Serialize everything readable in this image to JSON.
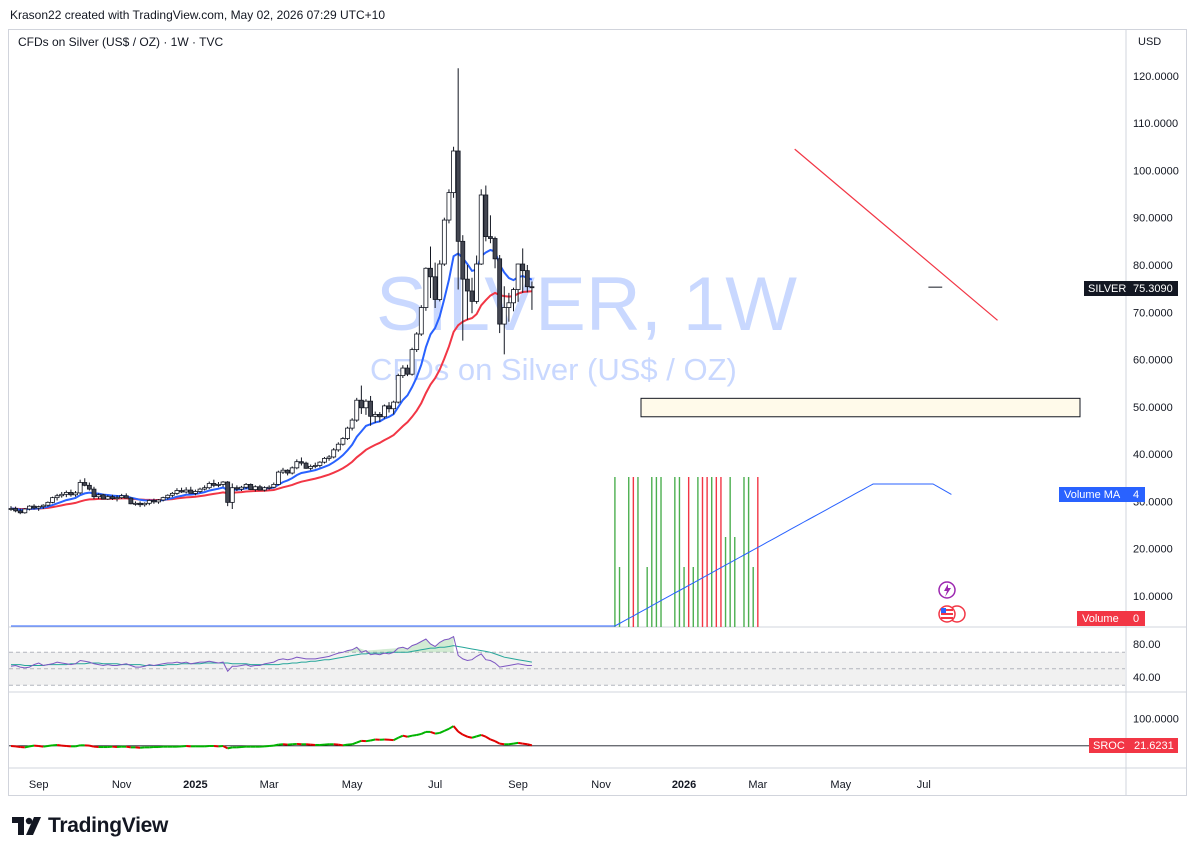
{
  "header": {
    "credit": "Krason22 created with TradingView.com, May 02, 2026 07:29 UTC+10",
    "symbol_title": "CFDs on Silver (US$ / OZ) · 1W · TVC",
    "currency": "USD"
  },
  "watermark": {
    "big": "SILVER, 1W",
    "small": "CFDs on Silver (US$ / OZ)"
  },
  "price_tag": {
    "label": "SILVER",
    "value": "75.3090"
  },
  "volume_ma_tag": {
    "label": "Volume MA",
    "value": "4"
  },
  "volume_tag": {
    "label": "Volume",
    "value": "0"
  },
  "sroc_tag": {
    "label": "SROC",
    "value": "21.6231"
  },
  "logo_text": "TradingView",
  "colors": {
    "up": "#ffffff",
    "down": "#434651",
    "candle_border": "#131722",
    "ma_fast": "#2962ff",
    "ma_slow": "#f23645",
    "vol_up": "#4caf50",
    "vol_down": "#f23645",
    "rsi": "#7e57c2",
    "rsi_ma": "#26a69a",
    "sroc_up": "#00b300",
    "sroc_down": "#e00000",
    "trendline": "#f23645"
  },
  "chart_data": [
    {
      "type": "candlestick",
      "title": "CFDs on Silver (US$ / OZ) · 1W · TVC",
      "ylabel": "USD",
      "ylim": [
        0,
        125
      ],
      "y_ticks": [
        10,
        20,
        30,
        40,
        50,
        60,
        70,
        80,
        90,
        100,
        110,
        120
      ],
      "y_tick_labels": [
        "10.0000",
        "20.0000",
        "30.0000",
        "40.0000",
        "50.0000",
        "60.0000",
        "70.0000",
        "80.0000",
        "90.0000",
        "100.0000",
        "110.0000",
        "120.0000"
      ],
      "x_tick_labels": [
        "Sep",
        "Nov",
        "2025",
        "Mar",
        "May",
        "Jul",
        "Sep",
        "Nov",
        "2026",
        "Mar",
        "May",
        "Jul"
      ],
      "x_tick_weeks": [
        6,
        24,
        40,
        56,
        74,
        92,
        110,
        128,
        146,
        162,
        180,
        198
      ],
      "last_price": 75.309,
      "candles": [
        [
          28.4,
          29.0,
          28.0,
          28.5
        ],
        [
          28.5,
          28.9,
          27.7,
          28.0
        ],
        [
          28.0,
          28.5,
          27.3,
          27.6
        ],
        [
          27.6,
          28.6,
          27.4,
          28.4
        ],
        [
          28.4,
          29.2,
          28.1,
          29.0
        ],
        [
          29.0,
          29.4,
          28.3,
          28.6
        ],
        [
          28.6,
          29.1,
          28.0,
          28.9
        ],
        [
          28.9,
          29.4,
          28.4,
          29.2
        ],
        [
          29.2,
          30.0,
          28.9,
          29.8
        ],
        [
          29.8,
          31.0,
          29.6,
          30.8
        ],
        [
          30.8,
          31.6,
          30.2,
          31.2
        ],
        [
          31.2,
          32.0,
          30.8,
          31.5
        ],
        [
          31.5,
          32.3,
          30.9,
          31.9
        ],
        [
          31.9,
          32.5,
          31.0,
          31.4
        ],
        [
          31.4,
          32.2,
          31.0,
          31.8
        ],
        [
          31.8,
          34.6,
          31.5,
          34.0
        ],
        [
          34.0,
          34.9,
          33.2,
          33.4
        ],
        [
          33.4,
          34.0,
          32.3,
          32.6
        ],
        [
          32.6,
          33.1,
          30.5,
          31.0
        ],
        [
          31.0,
          31.7,
          30.5,
          31.4
        ],
        [
          31.4,
          31.6,
          30.4,
          30.5
        ],
        [
          30.5,
          31.3,
          30.3,
          31.0
        ],
        [
          31.0,
          31.4,
          30.3,
          30.6
        ],
        [
          30.6,
          31.3,
          30.0,
          30.8
        ],
        [
          30.8,
          31.6,
          30.5,
          31.2
        ],
        [
          31.2,
          31.7,
          30.6,
          30.7
        ],
        [
          30.7,
          30.9,
          29.4,
          29.5
        ],
        [
          29.5,
          30.0,
          29.1,
          29.6
        ],
        [
          29.6,
          30.0,
          28.8,
          29.3
        ],
        [
          29.3,
          29.8,
          28.9,
          29.6
        ],
        [
          29.6,
          30.4,
          29.2,
          30.2
        ],
        [
          30.2,
          30.6,
          29.5,
          29.9
        ],
        [
          29.9,
          30.5,
          29.5,
          30.3
        ],
        [
          30.3,
          31.0,
          30.0,
          30.8
        ],
        [
          30.8,
          31.5,
          30.4,
          31.3
        ],
        [
          31.3,
          32.0,
          30.9,
          31.7
        ],
        [
          31.7,
          32.8,
          31.4,
          32.3
        ],
        [
          32.3,
          32.9,
          31.8,
          32.0
        ],
        [
          32.0,
          33.0,
          31.7,
          32.4
        ],
        [
          32.4,
          33.1,
          31.8,
          31.7
        ],
        [
          31.7,
          32.5,
          31.3,
          32.1
        ],
        [
          32.1,
          32.9,
          31.8,
          32.6
        ],
        [
          32.6,
          33.4,
          32.3,
          32.9
        ],
        [
          32.9,
          34.2,
          32.6,
          33.8
        ],
        [
          33.8,
          34.6,
          33.0,
          33.4
        ],
        [
          33.4,
          34.1,
          33.0,
          33.6
        ],
        [
          33.6,
          34.3,
          33.1,
          34.1
        ],
        [
          34.1,
          34.3,
          29.0,
          29.8
        ],
        [
          29.8,
          33.8,
          28.4,
          32.9
        ],
        [
          32.9,
          33.4,
          32.2,
          32.6
        ],
        [
          32.6,
          33.3,
          32.2,
          33.0
        ],
        [
          33.0,
          33.9,
          32.6,
          33.6
        ],
        [
          33.6,
          33.8,
          32.4,
          32.5
        ],
        [
          32.5,
          33.4,
          32.1,
          33.1
        ],
        [
          33.1,
          33.5,
          32.3,
          32.4
        ],
        [
          32.4,
          33.2,
          32.1,
          32.9
        ],
        [
          32.9,
          33.4,
          32.5,
          33.0
        ],
        [
          33.0,
          34.0,
          32.8,
          33.6
        ],
        [
          33.6,
          36.5,
          33.4,
          36.2
        ],
        [
          36.2,
          37.1,
          35.8,
          36.6
        ],
        [
          36.6,
          36.8,
          35.5,
          36.0
        ],
        [
          36.0,
          37.4,
          35.7,
          37.1
        ],
        [
          37.1,
          38.9,
          36.8,
          38.4
        ],
        [
          38.4,
          39.3,
          37.6,
          38.1
        ],
        [
          38.1,
          38.4,
          36.9,
          37.0
        ],
        [
          37.0,
          37.8,
          36.6,
          37.4
        ],
        [
          37.4,
          38.2,
          37.0,
          37.6
        ],
        [
          37.6,
          38.5,
          37.2,
          38.3
        ],
        [
          38.3,
          39.4,
          38.0,
          39.1
        ],
        [
          39.1,
          39.8,
          38.6,
          39.4
        ],
        [
          39.4,
          41.3,
          39.1,
          40.9
        ],
        [
          40.9,
          42.5,
          40.5,
          42.1
        ],
        [
          42.1,
          43.6,
          41.8,
          43.3
        ],
        [
          43.3,
          45.8,
          43.0,
          45.5
        ],
        [
          45.5,
          47.6,
          45.0,
          47.2
        ],
        [
          47.2,
          51.9,
          46.8,
          51.4
        ],
        [
          51.4,
          54.5,
          48.5,
          49.8
        ],
        [
          49.8,
          51.6,
          48.3,
          51.2
        ],
        [
          51.2,
          52.3,
          46.0,
          48.0
        ],
        [
          48.0,
          49.0,
          46.6,
          48.4
        ],
        [
          48.4,
          48.9,
          46.8,
          47.9
        ],
        [
          47.9,
          50.5,
          47.5,
          50.2
        ],
        [
          50.2,
          51.0,
          48.8,
          49.6
        ],
        [
          49.6,
          51.3,
          48.4,
          51.0
        ],
        [
          51.0,
          57.0,
          50.7,
          56.6
        ],
        [
          56.6,
          58.8,
          56.1,
          58.2
        ],
        [
          58.2,
          58.9,
          56.5,
          56.9
        ],
        [
          56.9,
          62.5,
          56.6,
          62.1
        ],
        [
          62.1,
          65.8,
          61.6,
          65.4
        ],
        [
          65.4,
          71.5,
          65.0,
          71.0
        ],
        [
          71.0,
          79.5,
          70.3,
          79.3
        ],
        [
          79.3,
          83.9,
          73.0,
          77.5
        ],
        [
          77.5,
          80.5,
          70.9,
          72.7
        ],
        [
          72.7,
          81.0,
          72.3,
          80.2
        ],
        [
          80.2,
          90.0,
          79.8,
          89.5
        ],
        [
          89.5,
          96.0,
          88.8,
          95.3
        ],
        [
          95.3,
          105.0,
          94.2,
          104.1
        ],
        [
          104.1,
          121.6,
          74.8,
          85.0
        ],
        [
          85.0,
          86.3,
          64.0,
          77.0
        ],
        [
          77.0,
          80.0,
          68.4,
          74.5
        ],
        [
          74.5,
          77.3,
          69.8,
          72.3
        ],
        [
          72.3,
          82.0,
          71.8,
          80.2
        ],
        [
          80.2,
          96.0,
          80.0,
          94.8
        ],
        [
          94.8,
          96.8,
          85.0,
          86.0
        ],
        [
          86.0,
          90.5,
          84.6,
          85.6
        ],
        [
          85.6,
          86.0,
          79.3,
          81.3
        ],
        [
          81.3,
          82.1,
          65.6,
          67.5
        ],
        [
          67.5,
          75.5,
          61.1,
          71.0
        ],
        [
          71.0,
          74.1,
          68.0,
          72.0
        ],
        [
          72.0,
          75.2,
          70.2,
          74.8
        ],
        [
          74.8,
          80.3,
          72.2,
          80.2
        ],
        [
          80.2,
          83.5,
          74.1,
          78.8
        ],
        [
          78.8,
          80.0,
          74.2,
          75.4
        ],
        [
          75.4,
          76.5,
          70.5,
          75.3
        ]
      ]
    },
    {
      "type": "histogram",
      "title": "Volume",
      "value_label": "0",
      "ma_label": "Volume MA",
      "ma_value_label": "4",
      "note": "Volume bars appear only from Oct 2025 onward; green = up week, red = down week",
      "bars_start_week": 131,
      "bar_heights": [
        1.0,
        0.4,
        0.0,
        1.0,
        1.0,
        1.0,
        0.0,
        0.4,
        1.0,
        1.0,
        1.0,
        0.0,
        0.0,
        1.0,
        1.0,
        0.4,
        1.0,
        0.4,
        1.0,
        1.0,
        1.0,
        1.0,
        1.0,
        1.0,
        0.6,
        1.0,
        0.6,
        0.0,
        1.0,
        1.0,
        0.4,
        1.0
      ],
      "bar_up": [
        true,
        true,
        false,
        true,
        false,
        true,
        false,
        true,
        true,
        true,
        true,
        false,
        false,
        true,
        true,
        true,
        false,
        true,
        true,
        false,
        false,
        true,
        false,
        false,
        true,
        true,
        true,
        false,
        true,
        true,
        true,
        false
      ],
      "ma_description": "flat near zero until Oct 2025, then rising steadily to a plateau from Feb 2026 and edging lower at the end"
    },
    {
      "type": "line",
      "title": "RSI",
      "y_ticks": [
        40,
        80
      ],
      "y_tick_labels": [
        "40.00",
        "80.00"
      ],
      "band": [
        30,
        70
      ],
      "series": [
        {
          "role": "rsi",
          "color": "#7e57c2",
          "values": [
            53,
            54,
            52,
            51,
            52,
            55,
            57,
            54,
            55,
            56,
            58,
            57,
            56,
            55,
            56,
            60,
            59,
            58,
            56,
            55,
            54,
            55,
            54,
            54,
            55,
            56,
            54,
            52,
            52,
            53,
            55,
            54,
            55,
            56,
            57,
            57,
            58,
            57,
            58,
            56,
            57,
            58,
            58,
            59,
            58,
            57,
            58,
            47,
            53,
            53,
            54,
            55,
            53,
            54,
            54,
            56,
            57,
            58,
            61,
            62,
            61,
            62,
            64,
            63,
            62,
            62,
            62,
            63,
            64,
            65,
            67,
            69,
            70,
            72,
            73,
            76,
            70,
            72,
            67,
            68,
            67,
            69,
            68,
            70,
            75,
            76,
            74,
            78,
            80,
            83,
            86,
            80,
            77,
            82,
            85,
            86,
            89,
            66,
            62,
            60,
            61,
            65,
            68,
            61,
            60,
            57,
            52,
            53,
            54,
            55,
            56,
            55,
            54,
            54
          ]
        },
        {
          "role": "rsi-ma",
          "color": "#26a69a",
          "values": [
            55,
            55,
            55,
            54,
            54,
            54,
            54,
            54,
            55,
            55,
            55,
            55,
            55,
            56,
            56,
            56,
            56,
            57,
            57,
            57,
            56,
            56,
            56,
            56,
            55,
            55,
            55,
            55,
            55,
            54,
            54,
            54,
            54,
            54,
            55,
            55,
            55,
            56,
            56,
            56,
            56,
            56,
            57,
            57,
            57,
            57,
            57,
            57,
            56,
            56,
            56,
            56,
            55,
            55,
            55,
            55,
            55,
            55,
            55,
            56,
            56,
            57,
            57,
            58,
            58,
            59,
            59,
            60,
            61,
            61,
            62,
            63,
            64,
            65,
            66,
            67,
            68,
            68,
            69,
            69,
            69,
            69,
            70,
            70,
            70,
            70,
            70,
            71,
            72,
            73,
            74,
            75,
            75,
            76,
            76,
            77,
            78,
            77,
            76,
            75,
            74,
            73,
            72,
            71,
            70,
            68,
            66,
            64,
            63,
            62,
            61,
            60,
            59,
            58
          ]
        }
      ]
    },
    {
      "type": "line",
      "title": "SROC",
      "value_label": "21.6231",
      "y_ticks": [
        100
      ],
      "y_tick_labels": [
        "100.0000"
      ],
      "series": [
        {
          "role": "sroc",
          "values": [
            20,
            19,
            17,
            16,
            19,
            21,
            20,
            18,
            20,
            22,
            23,
            21,
            20,
            19,
            19,
            22,
            22,
            21,
            18,
            17,
            17,
            17,
            18,
            17,
            18,
            18,
            16,
            16,
            15,
            16,
            16,
            17,
            17,
            18,
            18,
            18,
            18,
            19,
            20,
            19,
            19,
            19,
            19,
            20,
            20,
            19,
            20,
            13,
            16,
            16,
            17,
            18,
            18,
            18,
            18,
            19,
            20,
            21,
            24,
            25,
            24,
            25,
            26,
            25,
            25,
            24,
            23,
            23,
            24,
            25,
            25,
            24,
            22,
            24,
            25,
            30,
            35,
            34,
            36,
            39,
            38,
            39,
            38,
            37,
            44,
            50,
            47,
            50,
            52,
            55,
            61,
            61,
            56,
            58,
            64,
            70,
            78,
            62,
            53,
            47,
            44,
            48,
            52,
            47,
            39,
            34,
            27,
            25,
            25,
            27,
            29,
            27,
            25,
            22
          ]
        }
      ]
    }
  ]
}
